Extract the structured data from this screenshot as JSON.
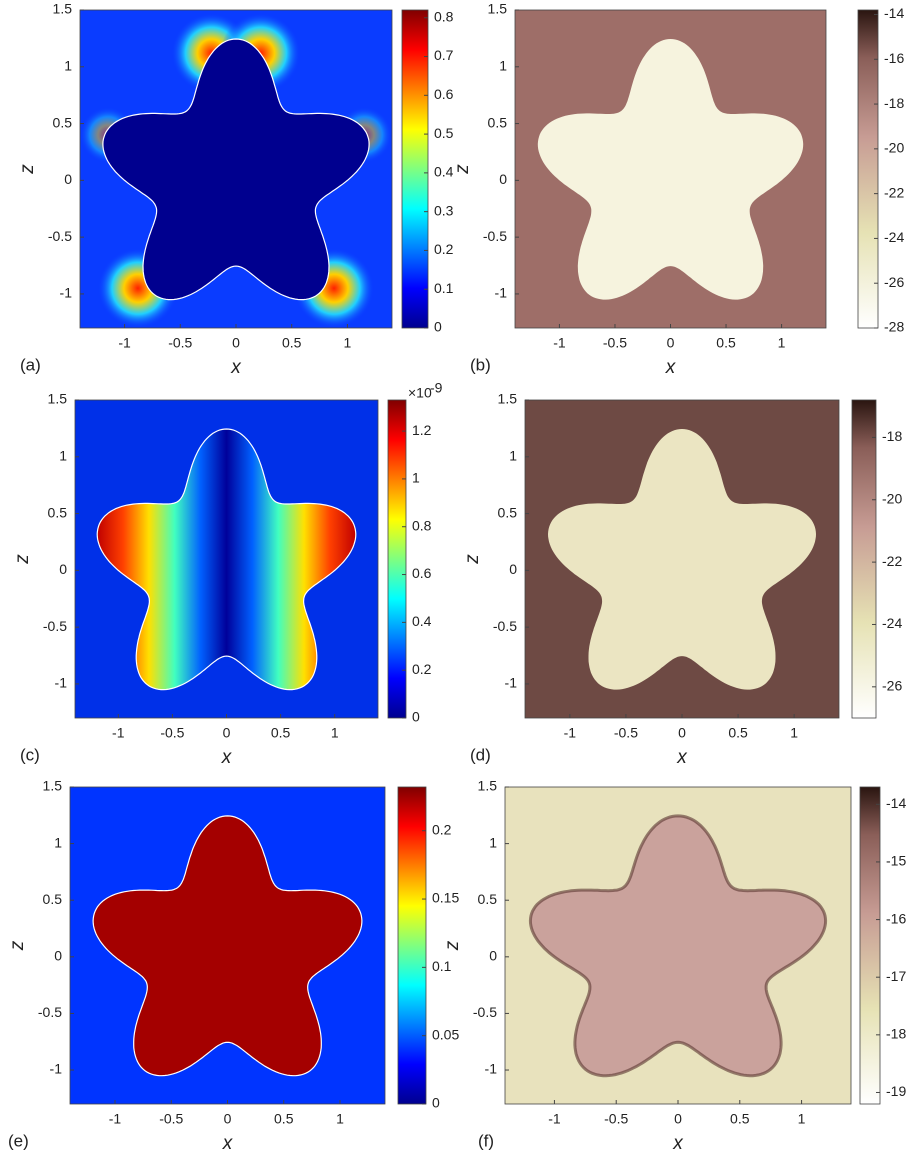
{
  "chart_data": [
    {
      "type": "heatmap",
      "panel_label": "(a)",
      "xlabel": "x",
      "ylabel": "z",
      "xlim": [
        -1.4,
        1.4
      ],
      "ylim": [
        -1.3,
        1.5
      ],
      "xticks": [
        -1,
        -0.5,
        0,
        0.5,
        1
      ],
      "yticks": [
        -1,
        -0.5,
        0,
        0.5,
        1,
        1.5
      ],
      "colormap": "jet",
      "clim": [
        0,
        0.82
      ],
      "cticks": [
        0,
        0.1,
        0.2,
        0.3,
        0.4,
        0.5,
        0.6,
        0.7,
        0.8
      ]
    },
    {
      "type": "heatmap",
      "panel_label": "(b)",
      "xlabel": "x",
      "ylabel": "z",
      "xlim": [
        -1.4,
        1.4
      ],
      "ylim": [
        -1.3,
        1.5
      ],
      "xticks": [
        -1,
        -0.5,
        0,
        0.5,
        1
      ],
      "yticks": [
        -1,
        -0.5,
        0,
        0.5,
        1,
        1.5
      ],
      "colormap": "pink-reversed",
      "clim": [
        -28,
        -13.8
      ],
      "cticks": [
        -28,
        -26,
        -24,
        -22,
        -20,
        -18,
        -16,
        -14
      ]
    },
    {
      "type": "heatmap",
      "panel_label": "(c)",
      "xlabel": "x",
      "ylabel": "z",
      "xlim": [
        -1.4,
        1.4
      ],
      "ylim": [
        -1.3,
        1.5
      ],
      "xticks": [
        -1,
        -0.5,
        0,
        0.5,
        1
      ],
      "yticks": [
        -1,
        -0.5,
        0,
        0.5,
        1,
        1.5
      ],
      "colormap": "jet",
      "clim": [
        0,
        1.33
      ],
      "cticks": [
        0,
        0.2,
        0.4,
        0.6,
        0.8,
        1,
        1.2
      ],
      "colorbar_multiplier": "×10",
      "colorbar_exponent": "-9"
    },
    {
      "type": "heatmap",
      "panel_label": "(d)",
      "xlabel": "x",
      "ylabel": "z",
      "xlim": [
        -1.4,
        1.4
      ],
      "ylim": [
        -1.3,
        1.5
      ],
      "xticks": [
        -1,
        -0.5,
        0,
        0.5,
        1
      ],
      "yticks": [
        -1,
        -0.5,
        0,
        0.5,
        1,
        1.5
      ],
      "colormap": "pink-reversed",
      "clim": [
        -27,
        -16.8
      ],
      "cticks": [
        -26,
        -24,
        -22,
        -20,
        -18
      ]
    },
    {
      "type": "heatmap",
      "panel_label": "(e)",
      "xlabel": "x",
      "ylabel": "z",
      "xlim": [
        -1.4,
        1.4
      ],
      "ylim": [
        -1.3,
        1.5
      ],
      "xticks": [
        -1,
        -0.5,
        0,
        0.5,
        1
      ],
      "yticks": [
        -1,
        -0.5,
        0,
        0.5,
        1,
        1.5
      ],
      "colormap": "jet",
      "clim": [
        0,
        0.232
      ],
      "cticks": [
        0,
        0.05,
        0.1,
        0.15,
        0.2
      ]
    },
    {
      "type": "heatmap",
      "panel_label": "(f)",
      "xlabel": "x",
      "ylabel": "z",
      "xlim": [
        -1.4,
        1.4
      ],
      "ylim": [
        -1.3,
        1.5
      ],
      "xticks": [
        -1,
        -0.5,
        0,
        0.5,
        1
      ],
      "yticks": [
        -1,
        -0.5,
        0,
        0.5,
        1,
        1.5
      ],
      "colormap": "pink-reversed",
      "clim": [
        -19.2,
        -13.7
      ],
      "cticks": [
        -19,
        -18,
        -17,
        -16,
        -15,
        -14
      ]
    }
  ]
}
